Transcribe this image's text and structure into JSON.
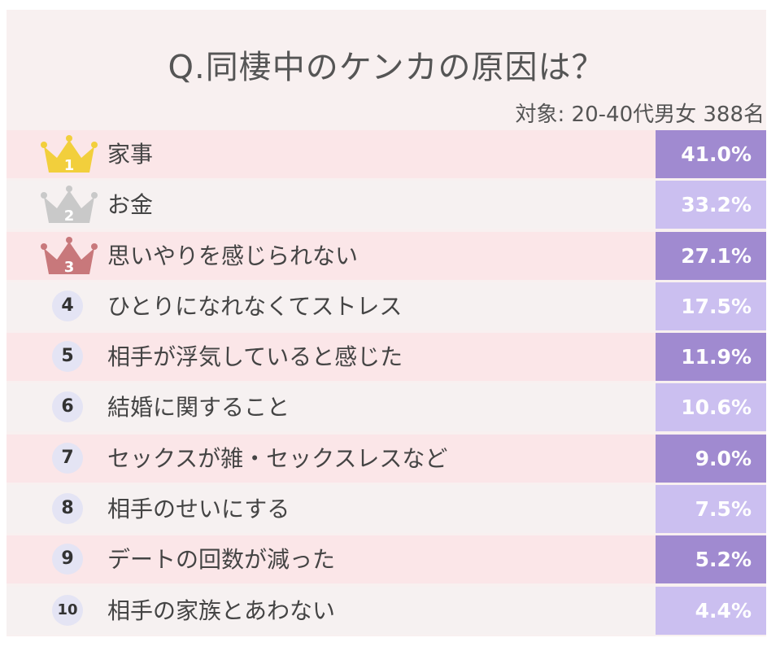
{
  "title": "Q.同棲中のケンカの原因は？",
  "subtitle": "対象: 20-40代男女 388名",
  "colors": {
    "gold": "#f2cf3c",
    "silver": "#c9c9c9",
    "bronze": "#c8787b",
    "bar_dark": "#a08ad0",
    "bar_light": "#cbbff0",
    "row_pink": "#fbe6e8",
    "row_plain": "#f6f1f1"
  },
  "chart_data": {
    "type": "table",
    "title": "Q.同棲中のケンカの原因は？",
    "subtitle": "対象: 20-40代男女 388名",
    "rows": [
      {
        "rank": "1",
        "label": "家事",
        "value": 41.0,
        "value_text": "41.0%"
      },
      {
        "rank": "2",
        "label": "お金",
        "value": 33.2,
        "value_text": "33.2%"
      },
      {
        "rank": "3",
        "label": "思いやりを感じられない",
        "value": 27.1,
        "value_text": "27.1%"
      },
      {
        "rank": "4",
        "label": "ひとりになれなくてストレス",
        "value": 17.5,
        "value_text": "17.5%"
      },
      {
        "rank": "5",
        "label": "相手が浮気していると感じた",
        "value": 11.9,
        "value_text": "11.9%"
      },
      {
        "rank": "6",
        "label": "結婚に関すること",
        "value": 10.6,
        "value_text": "10.6%"
      },
      {
        "rank": "7",
        "label": "セックスが雑・セックスレスなど",
        "value": 9.0,
        "value_text": "9.0%"
      },
      {
        "rank": "8",
        "label": "相手のせいにする",
        "value": 7.5,
        "value_text": "7.5%"
      },
      {
        "rank": "9",
        "label": "デートの回数が減った",
        "value": 5.2,
        "value_text": "5.2%"
      },
      {
        "rank": "10",
        "label": "相手の家族とあわない",
        "value": 4.4,
        "value_text": "4.4%"
      }
    ]
  }
}
